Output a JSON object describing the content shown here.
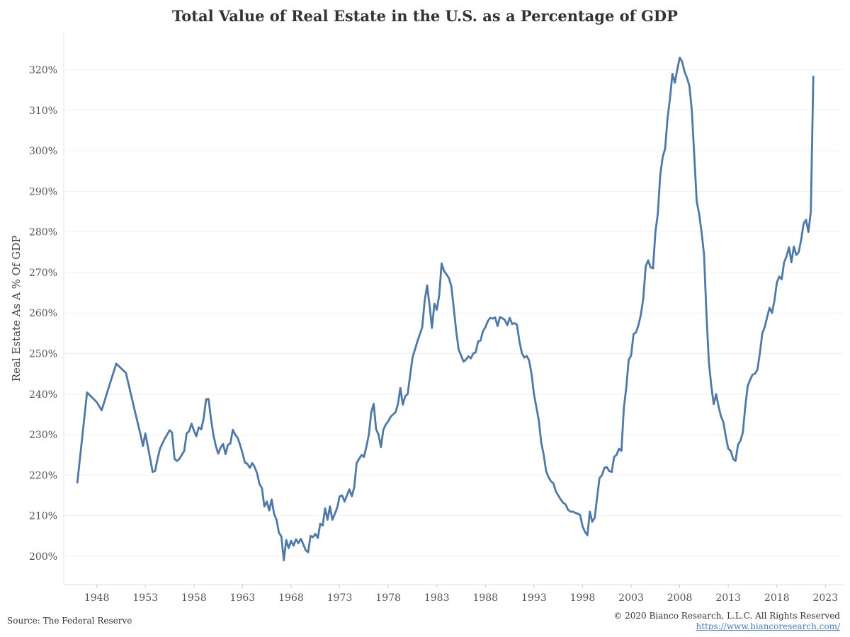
{
  "chart_data": {
    "type": "line",
    "title": "Total Value of Real Estate in the U.S. as a Percentage of GDP",
    "ylabel": "Real Estate As A % Of GDP",
    "xlabel": "",
    "xlim": [
      1944.6,
      2024.8
    ],
    "ylim": [
      193,
      329
    ],
    "x_ticks": [
      1948,
      1953,
      1958,
      1963,
      1968,
      1973,
      1978,
      1983,
      1988,
      1993,
      1998,
      2003,
      2008,
      2013,
      2018,
      2023
    ],
    "y_ticks": [
      200,
      210,
      220,
      230,
      240,
      250,
      260,
      270,
      280,
      290,
      300,
      310,
      320
    ],
    "y_tick_format": "{v}%",
    "grid": {
      "horizontal": true,
      "vertical": false
    },
    "line_color": "#4e79a7",
    "series": [
      {
        "points": [
          [
            1946.0,
            218.2
          ],
          [
            1947.0,
            240.4
          ],
          [
            1948.0,
            238.0
          ],
          [
            1948.5,
            236.0
          ],
          [
            1949.25,
            241.8
          ],
          [
            1950.0,
            247.5
          ],
          [
            1951.0,
            245.2
          ],
          [
            1952.0,
            235.0
          ],
          [
            1952.5,
            230.0
          ],
          [
            1952.75,
            227.2
          ],
          [
            1953.0,
            230.3
          ],
          [
            1953.5,
            224.0
          ],
          [
            1953.75,
            220.8
          ],
          [
            1954.0,
            221.0
          ],
          [
            1954.25,
            224.0
          ],
          [
            1954.5,
            226.5
          ],
          [
            1954.75,
            227.8
          ],
          [
            1955.0,
            229.0
          ],
          [
            1955.5,
            231.1
          ],
          [
            1955.75,
            230.5
          ],
          [
            1956.0,
            224.0
          ],
          [
            1956.25,
            223.5
          ],
          [
            1956.5,
            224.0
          ],
          [
            1957.0,
            226.0
          ],
          [
            1957.25,
            230.3
          ],
          [
            1957.5,
            230.8
          ],
          [
            1957.75,
            232.7
          ],
          [
            1958.0,
            231.0
          ],
          [
            1958.25,
            229.6
          ],
          [
            1958.5,
            231.8
          ],
          [
            1958.75,
            231.3
          ],
          [
            1959.0,
            234.0
          ],
          [
            1959.25,
            238.7
          ],
          [
            1959.5,
            238.8
          ],
          [
            1959.75,
            234.0
          ],
          [
            1960.0,
            230.0
          ],
          [
            1960.25,
            227.2
          ],
          [
            1960.5,
            225.3
          ],
          [
            1960.75,
            226.8
          ],
          [
            1961.0,
            227.7
          ],
          [
            1961.25,
            225.2
          ],
          [
            1961.5,
            227.5
          ],
          [
            1961.75,
            227.8
          ],
          [
            1962.0,
            231.2
          ],
          [
            1962.25,
            230.0
          ],
          [
            1962.5,
            229.2
          ],
          [
            1962.75,
            227.5
          ],
          [
            1963.0,
            225.4
          ],
          [
            1963.25,
            223.1
          ],
          [
            1963.5,
            222.8
          ],
          [
            1963.75,
            221.8
          ],
          [
            1964.0,
            223.0
          ],
          [
            1964.25,
            222.0
          ],
          [
            1964.5,
            220.5
          ],
          [
            1964.75,
            217.8
          ],
          [
            1965.0,
            216.8
          ],
          [
            1965.25,
            212.3
          ],
          [
            1965.5,
            213.5
          ],
          [
            1965.75,
            211.3
          ],
          [
            1966.0,
            214.0
          ],
          [
            1966.25,
            210.5
          ],
          [
            1966.5,
            209.0
          ],
          [
            1966.75,
            205.8
          ],
          [
            1967.0,
            204.9
          ],
          [
            1967.25,
            199.0
          ],
          [
            1967.5,
            204.0
          ],
          [
            1967.75,
            202.0
          ],
          [
            1968.0,
            203.8
          ],
          [
            1968.25,
            202.6
          ],
          [
            1968.5,
            204.2
          ],
          [
            1968.75,
            203.2
          ],
          [
            1969.0,
            204.3
          ],
          [
            1969.25,
            203.0
          ],
          [
            1969.5,
            201.5
          ],
          [
            1969.75,
            201.0
          ],
          [
            1970.0,
            205.0
          ],
          [
            1970.25,
            204.7
          ],
          [
            1970.5,
            205.5
          ],
          [
            1970.75,
            204.5
          ],
          [
            1971.0,
            208.0
          ],
          [
            1971.25,
            207.6
          ],
          [
            1971.5,
            211.8
          ],
          [
            1971.75,
            209.0
          ],
          [
            1972.0,
            212.3
          ],
          [
            1972.25,
            209.0
          ],
          [
            1972.5,
            210.5
          ],
          [
            1972.75,
            212.0
          ],
          [
            1973.0,
            214.8
          ],
          [
            1973.25,
            215.0
          ],
          [
            1973.5,
            213.5
          ],
          [
            1973.75,
            215.0
          ],
          [
            1974.0,
            216.5
          ],
          [
            1974.25,
            214.8
          ],
          [
            1974.5,
            217.0
          ],
          [
            1974.75,
            223.0
          ],
          [
            1975.0,
            224.0
          ],
          [
            1975.25,
            225.0
          ],
          [
            1975.5,
            224.5
          ],
          [
            1975.75,
            227.0
          ],
          [
            1976.0,
            230.0
          ],
          [
            1976.25,
            235.5
          ],
          [
            1976.5,
            237.6
          ],
          [
            1976.75,
            231.3
          ],
          [
            1977.0,
            230.0
          ],
          [
            1977.25,
            226.9
          ],
          [
            1977.5,
            231.2
          ],
          [
            1977.75,
            232.5
          ],
          [
            1978.0,
            233.3
          ],
          [
            1978.25,
            234.4
          ],
          [
            1978.5,
            235.0
          ],
          [
            1978.75,
            235.5
          ],
          [
            1979.0,
            237.5
          ],
          [
            1979.25,
            241.5
          ],
          [
            1979.5,
            237.4
          ],
          [
            1979.75,
            239.5
          ],
          [
            1980.0,
            240.0
          ],
          [
            1980.5,
            249.0
          ],
          [
            1981.0,
            253.0
          ],
          [
            1981.5,
            256.5
          ],
          [
            1981.75,
            263.0
          ],
          [
            1982.0,
            266.8
          ],
          [
            1982.25,
            262.0
          ],
          [
            1982.5,
            256.3
          ],
          [
            1982.75,
            262.3
          ],
          [
            1983.0,
            260.8
          ],
          [
            1983.25,
            264.5
          ],
          [
            1983.5,
            272.2
          ],
          [
            1983.75,
            270.3
          ],
          [
            1984.0,
            269.5
          ],
          [
            1984.25,
            268.6
          ],
          [
            1984.5,
            266.5
          ],
          [
            1984.75,
            261.0
          ],
          [
            1985.0,
            255.5
          ],
          [
            1985.25,
            251.0
          ],
          [
            1985.5,
            249.5
          ],
          [
            1985.75,
            248.0
          ],
          [
            1986.0,
            248.5
          ],
          [
            1986.25,
            249.3
          ],
          [
            1986.5,
            248.8
          ],
          [
            1986.75,
            250.0
          ],
          [
            1987.0,
            250.3
          ],
          [
            1987.25,
            253.0
          ],
          [
            1987.5,
            253.2
          ],
          [
            1987.75,
            255.5
          ],
          [
            1988.0,
            256.5
          ],
          [
            1988.25,
            258.0
          ],
          [
            1988.5,
            258.8
          ],
          [
            1988.75,
            258.6
          ],
          [
            1989.0,
            258.9
          ],
          [
            1989.25,
            256.8
          ],
          [
            1989.5,
            259.0
          ],
          [
            1989.75,
            258.7
          ],
          [
            1990.0,
            258.3
          ],
          [
            1990.25,
            257.0
          ],
          [
            1990.5,
            258.8
          ],
          [
            1990.75,
            257.3
          ],
          [
            1991.0,
            257.5
          ],
          [
            1991.25,
            257.1
          ],
          [
            1991.5,
            253.0
          ],
          [
            1991.75,
            250.2
          ],
          [
            1992.0,
            249.0
          ],
          [
            1992.25,
            249.4
          ],
          [
            1992.5,
            248.3
          ],
          [
            1992.75,
            245.0
          ],
          [
            1993.0,
            240.0
          ],
          [
            1993.5,
            233.5
          ],
          [
            1993.75,
            228.0
          ],
          [
            1994.0,
            225.0
          ],
          [
            1994.25,
            221.0
          ],
          [
            1994.5,
            219.5
          ],
          [
            1994.75,
            218.5
          ],
          [
            1995.0,
            218.0
          ],
          [
            1995.25,
            216.0
          ],
          [
            1995.5,
            215.0
          ],
          [
            1995.75,
            214.0
          ],
          [
            1996.0,
            213.2
          ],
          [
            1996.25,
            212.8
          ],
          [
            1996.5,
            211.5
          ],
          [
            1996.75,
            211.0
          ],
          [
            1997.0,
            211.0
          ],
          [
            1997.25,
            210.7
          ],
          [
            1997.5,
            210.5
          ],
          [
            1997.75,
            210.2
          ],
          [
            1998.0,
            207.4
          ],
          [
            1998.25,
            206.0
          ],
          [
            1998.5,
            205.2
          ],
          [
            1998.75,
            211.0
          ],
          [
            1999.0,
            208.5
          ],
          [
            1999.25,
            209.5
          ],
          [
            1999.5,
            214.5
          ],
          [
            1999.75,
            219.3
          ],
          [
            2000.0,
            220.0
          ],
          [
            2000.25,
            221.8
          ],
          [
            2000.5,
            222.0
          ],
          [
            2000.75,
            221.0
          ],
          [
            2001.0,
            220.8
          ],
          [
            2001.25,
            224.5
          ],
          [
            2001.5,
            225.0
          ],
          [
            2001.75,
            226.5
          ],
          [
            2002.0,
            226.0
          ],
          [
            2002.25,
            236.5
          ],
          [
            2002.5,
            241.5
          ],
          [
            2002.75,
            248.5
          ],
          [
            2003.0,
            249.5
          ],
          [
            2003.25,
            254.8
          ],
          [
            2003.5,
            255.2
          ],
          [
            2003.75,
            257.0
          ],
          [
            2004.0,
            259.5
          ],
          [
            2004.25,
            263.5
          ],
          [
            2004.5,
            271.5
          ],
          [
            2004.75,
            273.0
          ],
          [
            2005.0,
            271.3
          ],
          [
            2005.25,
            271.0
          ],
          [
            2005.5,
            280.0
          ],
          [
            2005.75,
            284.5
          ],
          [
            2006.0,
            294.0
          ],
          [
            2006.25,
            298.5
          ],
          [
            2006.5,
            300.5
          ],
          [
            2006.75,
            308.0
          ],
          [
            2007.0,
            313.0
          ],
          [
            2007.25,
            319.0
          ],
          [
            2007.5,
            316.8
          ],
          [
            2007.75,
            320.0
          ],
          [
            2008.0,
            323.0
          ],
          [
            2008.25,
            322.0
          ],
          [
            2008.5,
            319.5
          ],
          [
            2008.75,
            318.0
          ],
          [
            2009.0,
            316.0
          ],
          [
            2009.25,
            310.0
          ],
          [
            2009.5,
            299.0
          ],
          [
            2009.75,
            287.5
          ],
          [
            2010.0,
            284.5
          ],
          [
            2010.25,
            280.0
          ],
          [
            2010.5,
            274.5
          ],
          [
            2010.75,
            260.0
          ],
          [
            2011.0,
            248.0
          ],
          [
            2011.25,
            242.0
          ],
          [
            2011.5,
            237.5
          ],
          [
            2011.75,
            240.0
          ],
          [
            2012.0,
            237.0
          ],
          [
            2012.25,
            234.5
          ],
          [
            2012.5,
            233.0
          ],
          [
            2012.75,
            229.5
          ],
          [
            2013.0,
            226.5
          ],
          [
            2013.25,
            226.0
          ],
          [
            2013.5,
            224.0
          ],
          [
            2013.75,
            223.5
          ],
          [
            2014.0,
            227.5
          ],
          [
            2014.25,
            228.5
          ],
          [
            2014.5,
            230.5
          ],
          [
            2014.75,
            237.0
          ],
          [
            2015.0,
            242.0
          ],
          [
            2015.25,
            243.5
          ],
          [
            2015.5,
            244.8
          ],
          [
            2015.75,
            245.0
          ],
          [
            2016.0,
            246.0
          ],
          [
            2016.25,
            250.0
          ],
          [
            2016.5,
            255.0
          ],
          [
            2016.75,
            256.5
          ],
          [
            2017.0,
            259.0
          ],
          [
            2017.25,
            261.3
          ],
          [
            2017.5,
            260.0
          ],
          [
            2017.75,
            263.0
          ],
          [
            2018.0,
            267.5
          ],
          [
            2018.25,
            269.0
          ],
          [
            2018.5,
            268.3
          ],
          [
            2018.75,
            272.5
          ],
          [
            2019.0,
            274.0
          ],
          [
            2019.25,
            276.2
          ],
          [
            2019.5,
            272.5
          ],
          [
            2019.75,
            276.4
          ],
          [
            2020.0,
            274.3
          ],
          [
            2020.25,
            275.0
          ],
          [
            2020.5,
            278.0
          ],
          [
            2020.75,
            282.0
          ],
          [
            2021.0,
            283.0
          ],
          [
            2021.25,
            280.0
          ],
          [
            2021.5,
            285.0
          ],
          [
            2021.75,
            318.3
          ]
        ]
      }
    ]
  },
  "footer": {
    "source": "Source: The Federal Reserve",
    "copyright": "© 2020 Bianco Research, L.L.C. All Rights Reserved",
    "link": "https://www.biancoresearch.com/"
  }
}
